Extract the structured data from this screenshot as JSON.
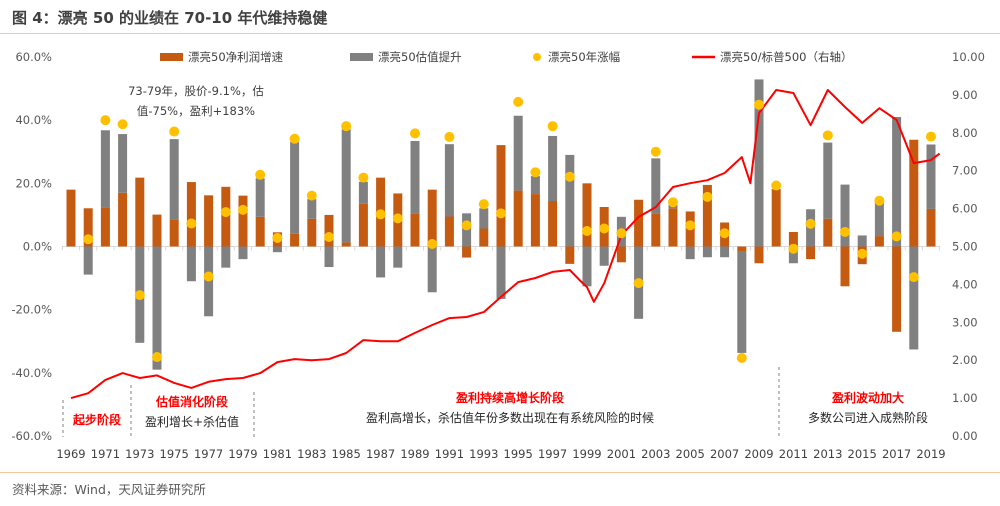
{
  "title": "图 4：漂亮 50 的业绩在 70-10 年代维持稳健",
  "source": "资料来源：Wind，天风证券研究所",
  "colors": {
    "profit": "#c55a11",
    "valuation": "#808080",
    "return": "#ffc000",
    "ratio": "#ff0000",
    "rule": "#f8c89a",
    "phase_title": "#ff0000"
  },
  "chart_data": {
    "type": "bar",
    "stacked": true,
    "categories": [
      "1969",
      "1970",
      "1971",
      "1972",
      "1973",
      "1974",
      "1975",
      "1976",
      "1977",
      "1978",
      "1979",
      "1980",
      "1981",
      "1982",
      "1983",
      "1984",
      "1985",
      "1986",
      "1987",
      "1988",
      "1989",
      "1990",
      "1991",
      "1992",
      "1993",
      "1994",
      "1995",
      "1996",
      "1997",
      "1998",
      "1999",
      "2000",
      "2001",
      "2002",
      "2003",
      "2004",
      "2005",
      "2006",
      "2007",
      "2008",
      "2009",
      "2010",
      "2011",
      "2012",
      "2013",
      "2014",
      "2015",
      "2016",
      "2017",
      "2018",
      "2019"
    ],
    "x_tick_labels": [
      "1969",
      "1971",
      "1973",
      "1975",
      "1977",
      "1979",
      "1981",
      "1983",
      "1985",
      "1987",
      "1989",
      "1991",
      "1993",
      "1995",
      "1997",
      "1999",
      "2001",
      "2003",
      "2005",
      "2007",
      "2009",
      "2011",
      "2013",
      "2015",
      "2017",
      "2019"
    ],
    "y_left": {
      "ylim": [
        -60,
        60
      ],
      "ticks": [
        "-60.0%",
        "-40.0%",
        "-20.0%",
        "0.0%",
        "20.0%",
        "40.0%",
        "60.0%"
      ]
    },
    "y_right": {
      "ylim": [
        0,
        10
      ],
      "ticks": [
        "0.00",
        "1.00",
        "2.00",
        "3.00",
        "4.00",
        "5.00",
        "6.00",
        "7.00",
        "8.00",
        "9.00",
        "10.00"
      ]
    },
    "legend_placement": "top",
    "series": [
      {
        "name": "漂亮50净利润增速",
        "kind": "bar",
        "axis": "left",
        "values": [
          18,
          12.1,
          12.4,
          17,
          21.8,
          10.1,
          8.6,
          20.4,
          16.2,
          18.9,
          16.1,
          9.4,
          4.5,
          4,
          8.8,
          10,
          1.3,
          13.5,
          21.8,
          16.8,
          10.5,
          18,
          9.5,
          -3.5,
          5.7,
          32.1,
          17.7,
          16.6,
          14.4,
          -5.5,
          20,
          12.5,
          -5,
          14.8,
          10.5,
          12.1,
          11.1,
          19.5,
          7.6,
          -1.7,
          -5.3,
          18.2,
          4.6,
          -4,
          8.8,
          -12.6,
          -5.6,
          3.3,
          -27,
          33.8,
          11.9
        ]
      },
      {
        "name": "漂亮50估值提升",
        "kind": "bar",
        "axis": "left",
        "values": [
          0,
          -8.9,
          24.4,
          18.6,
          -30.5,
          -39,
          25.4,
          -11,
          -22.1,
          -6.7,
          -4,
          12.2,
          -1.8,
          29.2,
          6.2,
          -6.5,
          35.8,
          7,
          -9.8,
          -6.7,
          22.9,
          -14.5,
          22.9,
          10.5,
          6.4,
          -16.6,
          23.7,
          5.7,
          20.6,
          29,
          -12.6,
          -6.1,
          9.4,
          -22.9,
          17.4,
          1.1,
          -4,
          -3.4,
          -3.4,
          -32,
          52.9,
          0,
          -5.3,
          11.8,
          24.1,
          19.6,
          3.5,
          10.7,
          41,
          -32.6,
          20.4
        ]
      },
      {
        "name": "漂亮50年涨幅",
        "kind": "scatter",
        "axis": "left",
        "values": [
          null,
          2.3,
          40,
          38.7,
          -15.4,
          -35,
          36.4,
          7.3,
          -9.5,
          10.9,
          11.6,
          22.7,
          2.7,
          34.1,
          16.1,
          3,
          38.1,
          21.8,
          10.2,
          8.9,
          35.8,
          0.8,
          34.7,
          6.7,
          13.4,
          10.5,
          45.8,
          23.5,
          38.1,
          22.1,
          4.9,
          5.7,
          4.2,
          -11.6,
          30,
          14,
          6.7,
          15.7,
          4.2,
          -35.3,
          44.9,
          19.3,
          -0.7,
          7.2,
          35.2,
          4.6,
          -2.3,
          14.5,
          3.2,
          -9.7,
          34.8
        ]
      },
      {
        "name": "漂亮50/标普500（右轴）",
        "kind": "line",
        "axis": "right",
        "x": [
          1969,
          1970,
          1971,
          1972,
          1973,
          1974,
          1975,
          1976,
          1977,
          1978,
          1979,
          1980,
          1981,
          1982,
          1983,
          1984,
          1985,
          1986,
          1987,
          1988,
          1989,
          1990,
          1991,
          1992,
          1993,
          1994,
          1995,
          1996,
          1997,
          1998,
          1998.6,
          1999,
          1999.4,
          2000,
          2001,
          2002,
          2003,
          2004,
          2005,
          2006,
          2007,
          2008,
          2008.5,
          2009,
          2010,
          2011,
          2012,
          2013,
          2014,
          2015,
          2016,
          2017,
          2018,
          2019,
          2019.5
        ],
        "values": [
          1.0,
          1.13,
          1.48,
          1.66,
          1.53,
          1.6,
          1.4,
          1.27,
          1.43,
          1.5,
          1.53,
          1.66,
          1.95,
          2.03,
          2.0,
          2.03,
          2.19,
          2.53,
          2.5,
          2.5,
          2.72,
          2.93,
          3.11,
          3.14,
          3.27,
          3.67,
          4.06,
          4.17,
          4.33,
          4.38,
          4.1,
          3.93,
          3.54,
          4.03,
          5.3,
          5.78,
          6.04,
          6.57,
          6.67,
          6.75,
          6.94,
          7.36,
          6.67,
          8.52,
          9.13,
          9.05,
          8.2,
          9.13,
          8.68,
          8.26,
          8.65,
          8.34,
          7.2,
          7.28,
          7.45
        ]
      }
    ],
    "annotations": {
      "note_line1": "73-79年，股价-9.1%，估",
      "note_line2": "值-75%，盈利+183%",
      "phases": [
        {
          "title": "起步阶段",
          "desc": ""
        },
        {
          "title": "估值消化阶段",
          "desc": "盈利增长+杀估值"
        },
        {
          "title": "盈利持续高增长阶段",
          "desc": "盈利高增长，杀估值年份多数出现在有系统风险的时候"
        },
        {
          "title": "盈利波动加大",
          "desc": "多数公司进入成熟阶段"
        }
      ]
    }
  }
}
